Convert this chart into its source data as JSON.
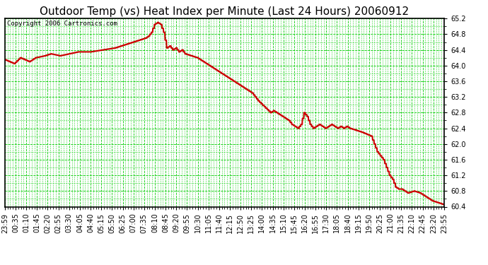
{
  "title": "Outdoor Temp (vs) Heat Index per Minute (Last 24 Hours) 20060912",
  "copyright": "Copyright 2006 Cartronics.com",
  "ylim": [
    60.4,
    65.2
  ],
  "yticks": [
    60.4,
    60.8,
    61.2,
    61.6,
    62.0,
    62.4,
    62.8,
    63.2,
    63.6,
    64.0,
    64.4,
    64.8,
    65.2
  ],
  "xtick_labels": [
    "23:59",
    "00:35",
    "01:10",
    "01:45",
    "02:20",
    "02:55",
    "03:30",
    "04:05",
    "04:40",
    "05:15",
    "05:50",
    "06:25",
    "07:00",
    "07:35",
    "08:10",
    "08:45",
    "09:20",
    "09:55",
    "10:30",
    "11:05",
    "11:40",
    "12:15",
    "12:50",
    "13:25",
    "14:00",
    "14:35",
    "15:10",
    "15:45",
    "16:20",
    "16:55",
    "17:30",
    "18:05",
    "18:40",
    "19:15",
    "19:50",
    "20:25",
    "21:00",
    "21:35",
    "22:10",
    "22:45",
    "23:20",
    "23:55"
  ],
  "line_color": "#cc0000",
  "grid_major_color": "#00cc00",
  "grid_minor_color": "#00cc00",
  "background_color": "#ffffff",
  "title_fontsize": 11,
  "copyright_fontsize": 6.5,
  "tick_fontsize": 7,
  "line_width": 1.5
}
